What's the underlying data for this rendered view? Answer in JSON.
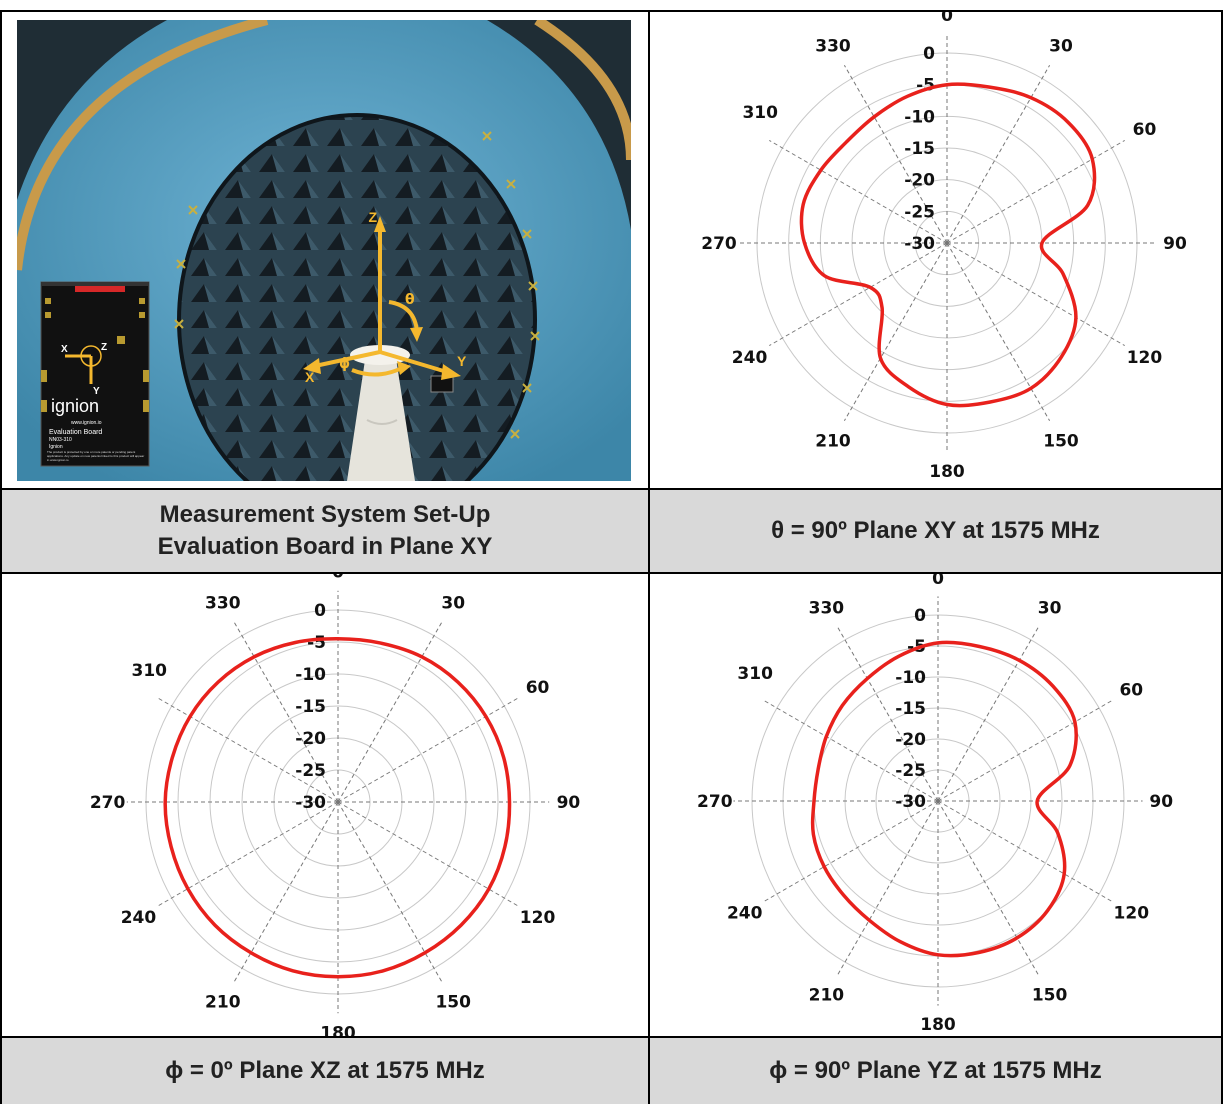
{
  "captions": {
    "top_left_line1": "Measurement System Set-Up",
    "top_left_line2": "Evaluation Board in Plane XY",
    "top_right": "θ = 90º Plane XY at 1575 MHz",
    "bottom_left": "ϕ = 0º Plane XZ at 1575 MHz",
    "bottom_right": "ϕ = 90º Plane YZ at 1575 MHz"
  },
  "photo": {
    "axes": {
      "z": "Z",
      "y": "Y",
      "x": "X",
      "theta": "θ",
      "phi": "ϕ"
    },
    "board": {
      "brand": "ignion",
      "url": "www.ignion.io",
      "title": "Evaluation Board",
      "part": "NN03-310",
      "company": "Ignion",
      "legal": "The product is protected by one or more patents or pending patent applications. Any update on new patents linked to this product will appear in www.ignion.io",
      "axis_x": "X",
      "axis_y": "Y",
      "axis_z": "Z"
    },
    "colors": {
      "chamber": "#4a94b7",
      "absorber": "#1e2b34",
      "axes": "#f4b82e",
      "board": "#121212",
      "board_stripe": "#d62828"
    }
  },
  "chart_data": [
    {
      "type": "polar-line",
      "plane": "XY",
      "angle_labels": [
        "0",
        "30",
        "60",
        "90",
        "120",
        "150",
        "180",
        "210",
        "240",
        "270",
        "310",
        "330"
      ],
      "ring_labels": [
        "0",
        "-5",
        "-10",
        "-15",
        "-20",
        "-25",
        "-30"
      ],
      "rlim": [
        -30,
        0
      ],
      "series": [
        {
          "color": "#e8211c",
          "angles": [
            0,
            15,
            30,
            45,
            60,
            75,
            90,
            105,
            120,
            135,
            150,
            165,
            180,
            195,
            210,
            225,
            240,
            255,
            270,
            285,
            300,
            315,
            330,
            345,
            360
          ],
          "values": [
            -5.0,
            -4.5,
            -3.5,
            -3.0,
            -3.5,
            -7.0,
            -15.0,
            -11.0,
            -6.5,
            -4.5,
            -3.5,
            -4.0,
            -4.5,
            -6.5,
            -9.0,
            -15.5,
            -16.0,
            -10.0,
            -7.5,
            -6.5,
            -7.0,
            -7.5,
            -7.0,
            -6.0,
            -5.0
          ]
        }
      ],
      "grid": true
    },
    {
      "type": "polar-line",
      "plane": "XZ",
      "angle_labels": [
        "0",
        "30",
        "60",
        "90",
        "120",
        "150",
        "180",
        "210",
        "240",
        "270",
        "310",
        "330"
      ],
      "ring_labels": [
        "0",
        "-5",
        "-10",
        "-15",
        "-20",
        "-25",
        "-30"
      ],
      "rlim": [
        -30,
        0
      ],
      "series": [
        {
          "color": "#e8211c",
          "angles": [
            0,
            15,
            30,
            45,
            60,
            75,
            90,
            105,
            120,
            135,
            150,
            165,
            180,
            195,
            210,
            225,
            240,
            255,
            270,
            285,
            300,
            315,
            330,
            345,
            360
          ],
          "values": [
            -4.5,
            -4.3,
            -3.8,
            -3.5,
            -3.3,
            -3.2,
            -3.2,
            -3.0,
            -2.8,
            -2.8,
            -2.8,
            -2.7,
            -2.7,
            -2.7,
            -2.8,
            -2.8,
            -2.9,
            -3.0,
            -3.0,
            -3.2,
            -3.3,
            -3.5,
            -3.8,
            -4.2,
            -4.5
          ]
        }
      ],
      "grid": true
    },
    {
      "type": "polar-line",
      "plane": "YZ",
      "angle_labels": [
        "0",
        "30",
        "60",
        "90",
        "120",
        "150",
        "180",
        "210",
        "240",
        "270",
        "310",
        "330"
      ],
      "ring_labels": [
        "0",
        "-5",
        "-10",
        "-15",
        "-20",
        "-25",
        "-30"
      ],
      "rlim": [
        -30,
        0
      ],
      "series": [
        {
          "color": "#e8211c",
          "angles": [
            0,
            15,
            30,
            45,
            60,
            75,
            90,
            105,
            120,
            135,
            150,
            165,
            180,
            195,
            210,
            225,
            240,
            255,
            270,
            285,
            300,
            315,
            330,
            345,
            360
          ],
          "values": [
            -4.5,
            -4.2,
            -3.8,
            -3.8,
            -4.5,
            -8.0,
            -14.0,
            -10.0,
            -6.5,
            -5.0,
            -4.5,
            -4.7,
            -5.2,
            -6.5,
            -7.8,
            -8.5,
            -8.8,
            -9.2,
            -10.0,
            -10.0,
            -9.2,
            -8.2,
            -7.2,
            -5.8,
            -4.5
          ]
        }
      ],
      "grid": true
    }
  ]
}
